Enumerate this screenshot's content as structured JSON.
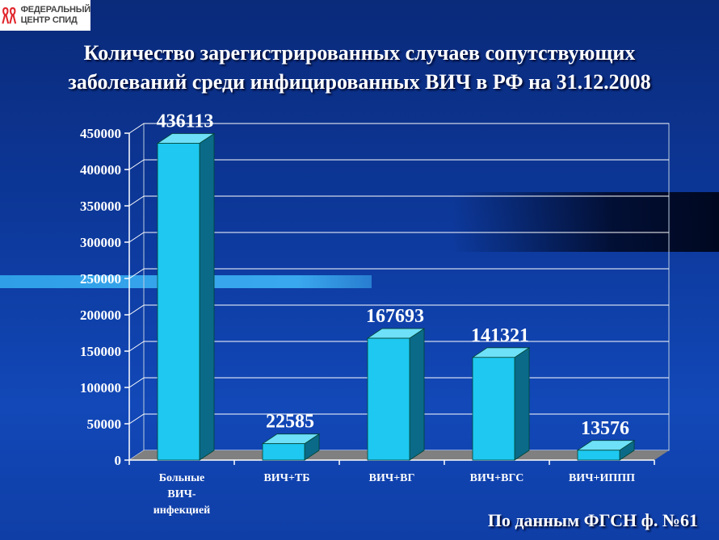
{
  "logo": {
    "line1": "ФЕДЕРАЛЬНЫЙ",
    "line2": "ЦЕНТР СПИД",
    "ribbon_color": "#e0242b"
  },
  "title_line1": "Количество зарегистрированных случаев сопутствующих",
  "title_line2": "заболеваний среди инфицированных  ВИЧ в РФ на 31.12.2008",
  "source_note": "По данным ФГСН ф. №61",
  "colors": {
    "bar_front": "#1ec8f0",
    "bar_side": "#0a6a88",
    "bar_top": "#6ee0f8",
    "floor": "#808080",
    "grid": "#ffffff"
  },
  "chart_data": {
    "type": "bar",
    "title": "Количество зарегистрированных случаев сопутствующих заболеваний среди инфицированных  ВИЧ в РФ на 31.12.2008",
    "categories": [
      [
        "Больные",
        "ВИЧ-",
        "инфекцией"
      ],
      [
        "ВИЧ+ТБ"
      ],
      [
        "ВИЧ+ВГ"
      ],
      [
        "ВИЧ+ВГС"
      ],
      [
        "ВИЧ+ИППП"
      ]
    ],
    "values": [
      436113,
      22585,
      167693,
      141321,
      13576
    ],
    "data_labels": [
      "436113",
      "22585",
      "167693",
      "141321",
      "13576"
    ],
    "ylim": [
      0,
      450000
    ],
    "yticks": [
      0,
      50000,
      100000,
      150000,
      200000,
      250000,
      300000,
      350000,
      400000,
      450000
    ],
    "ytick_labels": [
      "0",
      "50000",
      "100000",
      "150000",
      "200000",
      "250000",
      "300000",
      "350000",
      "400000",
      "450000"
    ],
    "grid": true,
    "legend": "none"
  }
}
